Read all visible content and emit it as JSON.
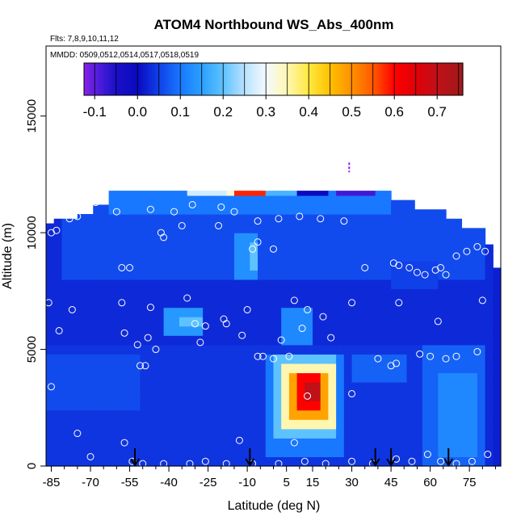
{
  "chart_data": {
    "type": "heatmap",
    "title": "ATOM4 Northbound WS_Abs_400nm",
    "subtitle_lines": [
      "Flts: 7,8,9,10,11,12",
      "MMDD: 0509,0512,0514,0517,0518,0519"
    ],
    "xlabel": "Latitude (deg N)",
    "ylabel": "Altitude (m)",
    "xlim": [
      -87,
      87
    ],
    "ylim": [
      0,
      18000
    ],
    "x_ticks": [
      -85,
      -70,
      -55,
      -40,
      -25,
      -10,
      5,
      15,
      30,
      45,
      60,
      75
    ],
    "x_tick_labels": [
      "-85",
      "-70",
      "-55",
      "-40",
      "-25",
      "-10",
      "5",
      "15",
      "30",
      "45",
      "60",
      "75"
    ],
    "x_minor_step": 5,
    "y_ticks": [
      0,
      5000,
      10000,
      15000
    ],
    "y_tick_labels": [
      "0",
      "5000",
      "10000",
      "15000"
    ],
    "colorbar": {
      "ticks": [
        -0.1,
        0.0,
        0.1,
        0.2,
        0.3,
        0.4,
        0.5,
        0.6,
        0.7
      ],
      "tick_labels": [
        "-0.1",
        "0.0",
        "0.1",
        "0.2",
        "0.3",
        "0.4",
        "0.5",
        "0.6",
        "0.7"
      ],
      "range": [
        -0.125,
        0.76
      ],
      "stops": [
        {
          "v": -0.125,
          "c": "#8a20e6"
        },
        {
          "v": -0.1,
          "c": "#5b1fe0"
        },
        {
          "v": -0.05,
          "c": "#1a10c8"
        },
        {
          "v": 0.0,
          "c": "#0a0ac0"
        },
        {
          "v": 0.05,
          "c": "#1040e8"
        },
        {
          "v": 0.1,
          "c": "#1878ff"
        },
        {
          "v": 0.15,
          "c": "#2aa0ff"
        },
        {
          "v": 0.2,
          "c": "#5ec2ff"
        },
        {
          "v": 0.25,
          "c": "#b8e2ff"
        },
        {
          "v": 0.3,
          "c": "#f4faff"
        },
        {
          "v": 0.35,
          "c": "#fff7b0"
        },
        {
          "v": 0.4,
          "c": "#ffe840"
        },
        {
          "v": 0.45,
          "c": "#ffc000"
        },
        {
          "v": 0.5,
          "c": "#ff9000"
        },
        {
          "v": 0.55,
          "c": "#ff5a00"
        },
        {
          "v": 0.6,
          "c": "#ff0000"
        },
        {
          "v": 0.65,
          "c": "#e00008"
        },
        {
          "v": 0.7,
          "c": "#c01018"
        },
        {
          "v": 0.76,
          "c": "#9e1a1a"
        }
      ]
    },
    "background_value": 0.02,
    "field_regions": [
      {
        "lat": [
          -86,
          83
        ],
        "alt": [
          0,
          11700
        ],
        "value": 0.03
      },
      {
        "lat": [
          -86,
          81
        ],
        "alt": [
          0,
          5000
        ],
        "value": 0.04
      },
      {
        "lat": [
          -80,
          80
        ],
        "alt": [
          8000,
          11700
        ],
        "value": 0.06
      },
      {
        "lat": [
          -62,
          45
        ],
        "alt": [
          10900,
          11800
        ],
        "value": 0.1
      },
      {
        "lat": [
          -32,
          -14
        ],
        "alt": [
          11500,
          12200
        ],
        "value": 0.27
      },
      {
        "lat": [
          -18,
          -5
        ],
        "alt": [
          11500,
          12200
        ],
        "value": 0.33
      },
      {
        "lat": [
          -14,
          -2
        ],
        "alt": [
          11800,
          12200
        ],
        "value": 0.58
      },
      {
        "lat": [
          -2,
          8
        ],
        "alt": [
          11800,
          12200
        ],
        "value": 0.18
      },
      {
        "lat": [
          8,
          22
        ],
        "alt": [
          11800,
          12200
        ],
        "value": 0.0
      },
      {
        "lat": [
          24,
          40
        ],
        "alt": [
          11800,
          12200
        ],
        "value": -0.08
      },
      {
        "lat": [
          -14,
          -6
        ],
        "alt": [
          8000,
          10000
        ],
        "value": 0.13
      },
      {
        "lat": [
          -10,
          -6
        ],
        "alt": [
          8500,
          9500
        ],
        "value": 0.2
      },
      {
        "lat": [
          -42,
          -26
        ],
        "alt": [
          5800,
          6600
        ],
        "value": 0.14
      },
      {
        "lat": [
          -36,
          -28
        ],
        "alt": [
          5900,
          6400
        ],
        "value": 0.2
      },
      {
        "lat": [
          2,
          14
        ],
        "alt": [
          5200,
          6600
        ],
        "value": 0.12
      },
      {
        "lat": [
          -4,
          28
        ],
        "alt": [
          600,
          4900
        ],
        "value": 0.1
      },
      {
        "lat": [
          0,
          25
        ],
        "alt": [
          1200,
          4700
        ],
        "value": 0.2
      },
      {
        "lat": [
          3,
          23
        ],
        "alt": [
          1800,
          4300
        ],
        "value": 0.35
      },
      {
        "lat": [
          5,
          21
        ],
        "alt": [
          2100,
          4000
        ],
        "value": 0.48
      },
      {
        "lat": [
          8,
          19
        ],
        "alt": [
          2500,
          3800
        ],
        "value": 0.6
      },
      {
        "lat": [
          11,
          17
        ],
        "alt": [
          2800,
          3500
        ],
        "value": 0.7
      },
      {
        "lat": [
          58,
          82
        ],
        "alt": [
          200,
          5200
        ],
        "value": 0.08
      },
      {
        "lat": [
          64,
          78
        ],
        "alt": [
          500,
          4000
        ],
        "value": 0.12
      },
      {
        "lat": [
          -86,
          -50
        ],
        "alt": [
          2600,
          4600
        ],
        "value": 0.06
      },
      {
        "lat": [
          30,
          50
        ],
        "alt": [
          3800,
          4800
        ],
        "value": 0.08
      },
      {
        "lat": [
          46,
          62
        ],
        "alt": [
          7600,
          8800
        ],
        "value": 0.05
      }
    ],
    "column_tops": [
      {
        "lat": [
          -87,
          -83
        ],
        "top": 10400
      },
      {
        "lat": [
          -83,
          -75
        ],
        "top": 10600
      },
      {
        "lat": [
          -75,
          -68
        ],
        "top": 10800
      },
      {
        "lat": [
          -68,
          -62
        ],
        "top": 11200
      },
      {
        "lat": [
          -62,
          45
        ],
        "top": 11800
      },
      {
        "lat": [
          45,
          55
        ],
        "top": 11400
      },
      {
        "lat": [
          55,
          65
        ],
        "top": 11000
      },
      {
        "lat": [
          65,
          72
        ],
        "top": 10600
      },
      {
        "lat": [
          72,
          80
        ],
        "top": 10200
      },
      {
        "lat": [
          80,
          83
        ],
        "top": 9500
      },
      {
        "lat": [
          83,
          87
        ],
        "top": 8500
      }
    ],
    "obs_points": [
      [
        -85,
        10000
      ],
      [
        -83,
        10100
      ],
      [
        -78,
        10600
      ],
      [
        -75,
        10700
      ],
      [
        -71,
        11100
      ],
      [
        -68,
        11300
      ],
      [
        -66,
        11400
      ],
      [
        -60,
        10900
      ],
      [
        -47,
        11000
      ],
      [
        -38,
        10900
      ],
      [
        -31,
        11200
      ],
      [
        -20,
        11100
      ],
      [
        -15,
        10900
      ],
      [
        -6,
        10500
      ],
      [
        2,
        10600
      ],
      [
        10,
        10700
      ],
      [
        18,
        10600
      ],
      [
        27,
        10500
      ],
      [
        -21,
        10300
      ],
      [
        -43,
        10000
      ],
      [
        -42,
        9800
      ],
      [
        -35,
        10300
      ],
      [
        -58,
        8500
      ],
      [
        -55,
        8500
      ],
      [
        -8,
        9300
      ],
      [
        0,
        9300
      ],
      [
        35,
        8500
      ],
      [
        46,
        8700
      ],
      [
        48,
        8600
      ],
      [
        52,
        8500
      ],
      [
        55,
        8300
      ],
      [
        58,
        8200
      ],
      [
        64,
        8500
      ],
      [
        66,
        8200
      ],
      [
        70,
        9000
      ],
      [
        74,
        9200
      ],
      [
        78,
        9400
      ],
      [
        81,
        9200
      ],
      [
        -86,
        7000
      ],
      [
        -77,
        6700
      ],
      [
        -58,
        7000
      ],
      [
        -47,
        6800
      ],
      [
        -33,
        7200
      ],
      [
        -30,
        6100
      ],
      [
        -26,
        6000
      ],
      [
        -19,
        6300
      ],
      [
        -10,
        6700
      ],
      [
        8,
        7100
      ],
      [
        13,
        6700
      ],
      [
        19,
        6400
      ],
      [
        30,
        7000
      ],
      [
        48,
        7000
      ],
      [
        63,
        6200
      ],
      [
        80,
        7100
      ],
      [
        -82,
        5800
      ],
      [
        -57,
        5700
      ],
      [
        -52,
        5200
      ],
      [
        -48,
        5500
      ],
      [
        -45,
        5000
      ],
      [
        -28,
        5300
      ],
      [
        -12,
        5600
      ],
      [
        3,
        5400
      ],
      [
        11,
        5900
      ],
      [
        22,
        5500
      ],
      [
        -6,
        4700
      ],
      [
        -4,
        4700
      ],
      [
        0,
        4600
      ],
      [
        6,
        4700
      ],
      [
        40,
        4600
      ],
      [
        47,
        4400
      ],
      [
        56,
        4800
      ],
      [
        60,
        4700
      ],
      [
        66,
        4600
      ],
      [
        70,
        4700
      ],
      [
        78,
        4900
      ],
      [
        -51,
        4300
      ],
      [
        -49,
        4300
      ],
      [
        30,
        3100
      ],
      [
        -85,
        3400
      ],
      [
        -75,
        1400
      ],
      [
        -70,
        400
      ],
      [
        -54,
        200
      ],
      [
        -50,
        100
      ],
      [
        -42,
        100
      ],
      [
        -32,
        100
      ],
      [
        -26,
        200
      ],
      [
        -18,
        100
      ],
      [
        -8,
        100
      ],
      [
        2,
        100
      ],
      [
        12,
        200
      ],
      [
        20,
        100
      ],
      [
        30,
        200
      ],
      [
        38,
        100
      ],
      [
        47,
        300
      ],
      [
        53,
        200
      ],
      [
        59,
        500
      ],
      [
        64,
        200
      ],
      [
        70,
        100
      ],
      [
        76,
        200
      ],
      [
        82,
        500
      ],
      [
        -13,
        1100
      ],
      [
        8,
        1000
      ],
      [
        -57,
        1000
      ],
      [
        45,
        4300
      ],
      [
        62,
        8400
      ],
      [
        -6,
        9600
      ],
      [
        -18,
        6100
      ],
      [
        13,
        3000
      ]
    ],
    "arrows_lat": [
      -53,
      -9,
      39,
      45,
      67
    ],
    "dash_mark": {
      "lat": 29,
      "alt": 12800,
      "color": "#8a20e6"
    }
  }
}
